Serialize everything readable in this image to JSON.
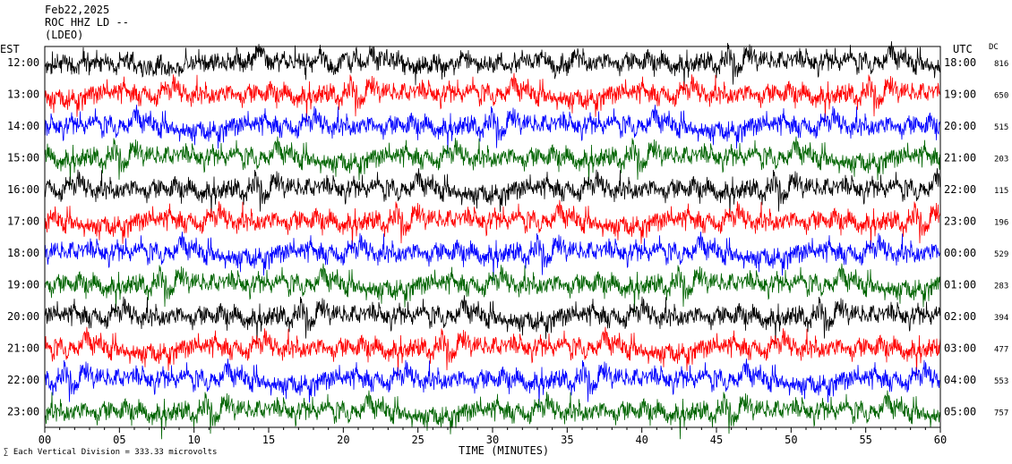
{
  "header": {
    "date": "Feb22,2025",
    "station": "ROC HHZ LD --",
    "network": "(LDEO)"
  },
  "labels": {
    "left_tz": "EST",
    "right_tz": "UTC",
    "dc": "DC",
    "xlabel": "TIME (MINUTES)",
    "footer": "Each Vertical Division =  333.33 microvolts"
  },
  "colors": [
    "#000000",
    "#ff0000",
    "#0000ff",
    "#006400"
  ],
  "chart_data": {
    "type": "line",
    "subtype": "helicorder",
    "x_ticks": [
      "00",
      "05",
      "10",
      "15",
      "20",
      "25",
      "30",
      "35",
      "40",
      "45",
      "50",
      "55",
      "60"
    ],
    "xlim": [
      0,
      60
    ],
    "rows": [
      {
        "est": "12:00",
        "utc": "18:00",
        "dc": "816"
      },
      {
        "est": "13:00",
        "utc": "19:00",
        "dc": "650"
      },
      {
        "est": "14:00",
        "utc": "20:00",
        "dc": "515"
      },
      {
        "est": "15:00",
        "utc": "21:00",
        "dc": "203"
      },
      {
        "est": "16:00",
        "utc": "22:00",
        "dc": "115"
      },
      {
        "est": "17:00",
        "utc": "23:00",
        "dc": "196"
      },
      {
        "est": "18:00",
        "utc": "00:00",
        "dc": "529"
      },
      {
        "est": "19:00",
        "utc": "01:00",
        "dc": "283"
      },
      {
        "est": "20:00",
        "utc": "02:00",
        "dc": "394"
      },
      {
        "est": "21:00",
        "utc": "03:00",
        "dc": "477"
      },
      {
        "est": "22:00",
        "utc": "04:00",
        "dc": "553"
      },
      {
        "est": "23:00",
        "utc": "05:00",
        "dc": "757"
      }
    ]
  }
}
